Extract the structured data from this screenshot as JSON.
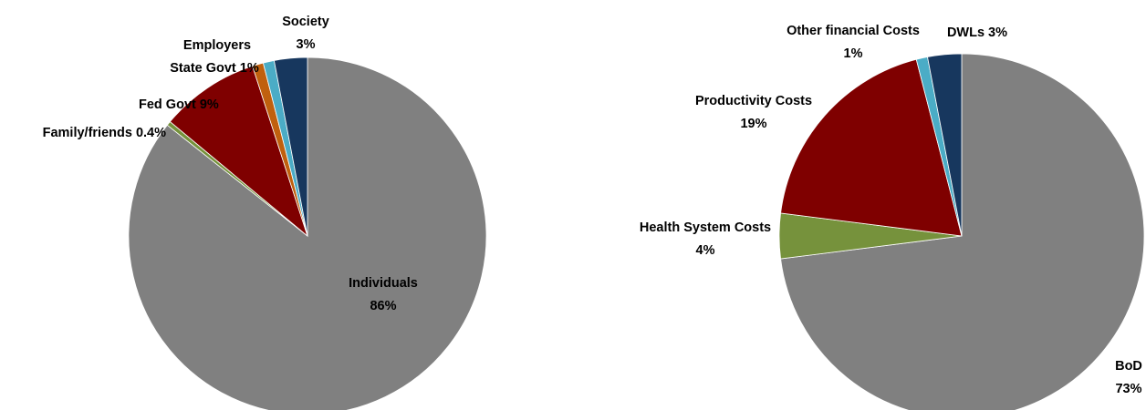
{
  "chart_data": [
    {
      "type": "pie",
      "start_angle_deg": 0,
      "direction": "clockwise",
      "slices": [
        {
          "name": "Individuals",
          "value": 86,
          "label_lines": [
            "Individuals",
            "86%"
          ],
          "color": "#808080"
        },
        {
          "name": "Family/friends",
          "value": 0.4,
          "label_lines": [
            "Family/friends 0.4%"
          ],
          "color": "#76923C"
        },
        {
          "name": "Fed Govt",
          "value": 9,
          "label_lines": [
            "Fed Govt 9%"
          ],
          "color": "#7F0000"
        },
        {
          "name": "State Govt",
          "value": 1,
          "label_lines": [
            "State Govt 1%"
          ],
          "color": "#C0600E"
        },
        {
          "name": "Employers",
          "value": 1,
          "label_lines": [
            "Employers"
          ],
          "color": "#4BACC6"
        },
        {
          "name": "Society",
          "value": 3,
          "label_lines": [
            "Society",
            "3%"
          ],
          "color": "#17375E"
        }
      ]
    },
    {
      "type": "pie",
      "start_angle_deg": 0,
      "direction": "clockwise",
      "slices": [
        {
          "name": "BoD",
          "value": 73,
          "label_lines": [
            "BoD",
            "73%"
          ],
          "color": "#808080"
        },
        {
          "name": "Health System Costs",
          "value": 4,
          "label_lines": [
            "Health System Costs",
            "4%"
          ],
          "color": "#76923C"
        },
        {
          "name": "Productivity Costs",
          "value": 19,
          "label_lines": [
            "Productivity Costs",
            "19%"
          ],
          "color": "#7F0000"
        },
        {
          "name": "Other financial Costs",
          "value": 1,
          "label_lines": [
            "Other financial Costs",
            "1%"
          ],
          "color": "#4BACC6"
        },
        {
          "name": "DWLs",
          "value": 3,
          "label_lines": [
            "DWLs 3%"
          ],
          "color": "#17375E"
        }
      ]
    }
  ]
}
